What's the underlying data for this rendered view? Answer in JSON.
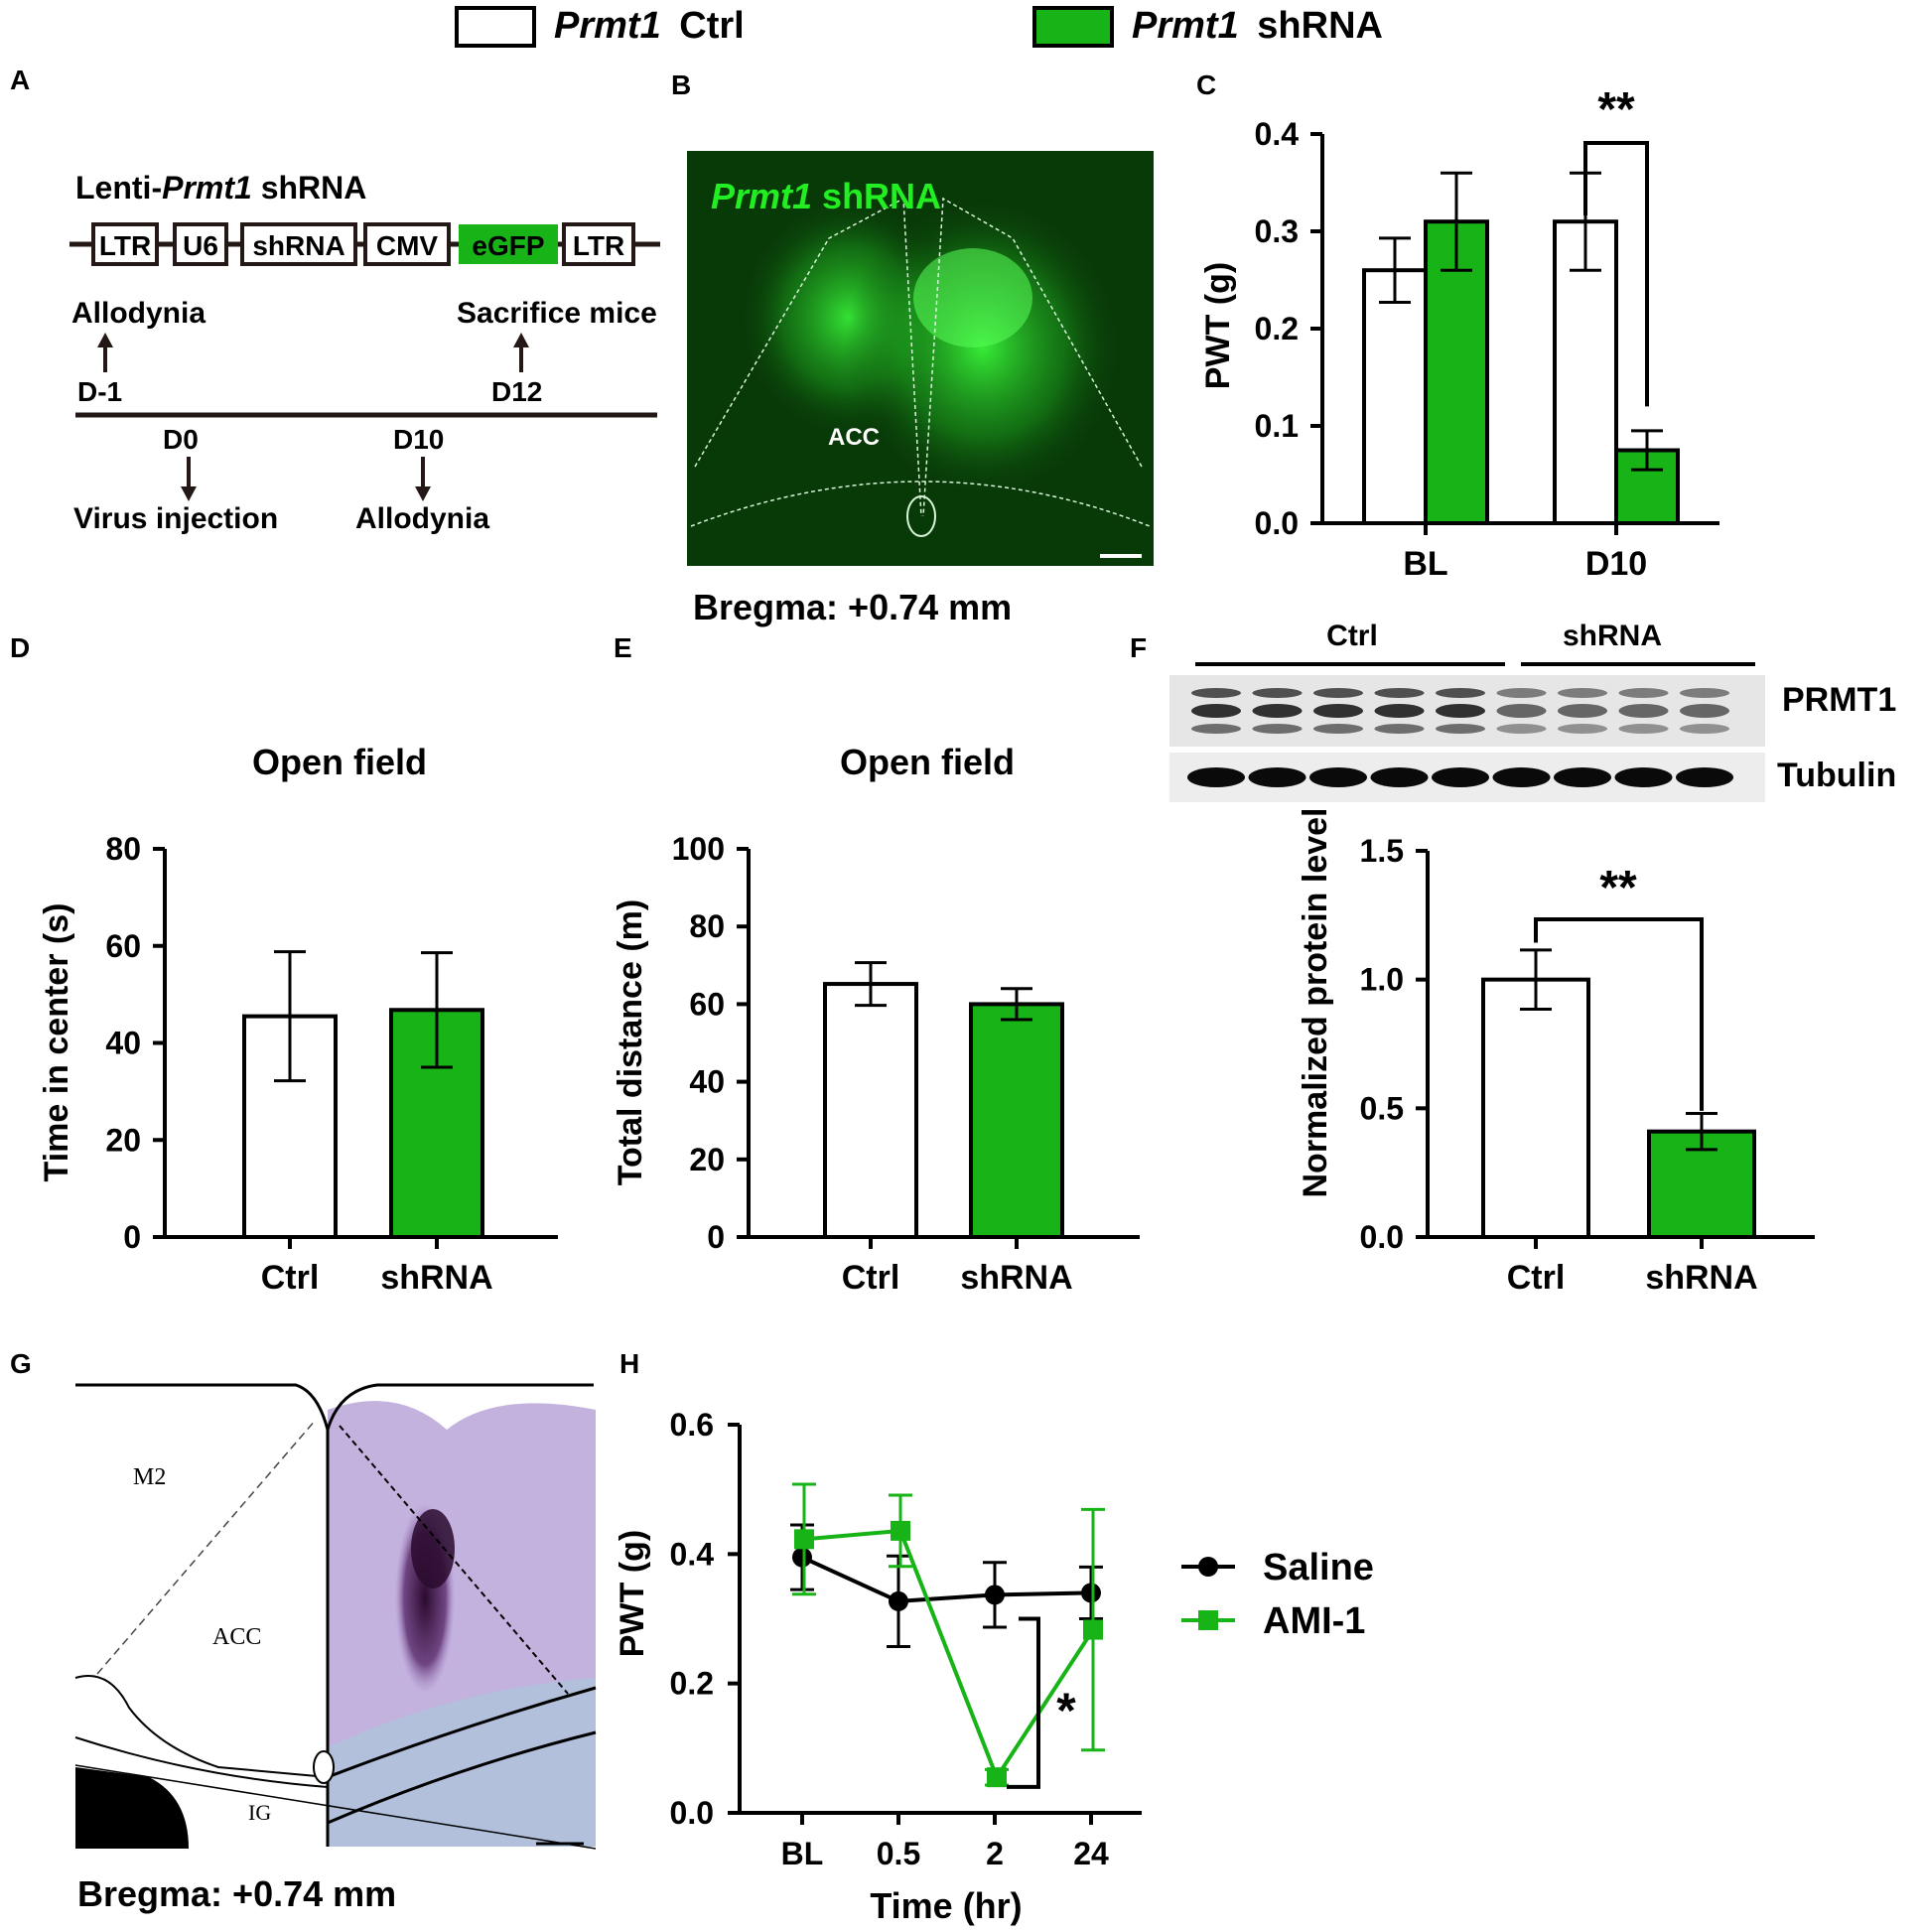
{
  "legend_top": {
    "ctrl": {
      "gene": "Prmt1",
      "label": "Ctrl",
      "color": "#ffffff"
    },
    "shrna": {
      "gene": "Prmt1",
      "label": "shRNA",
      "color": "#17b317"
    }
  },
  "panel_labels": {
    "a": "A",
    "b": "B",
    "c": "C",
    "d": "D",
    "e": "E",
    "f": "F",
    "g": "G",
    "h": "H"
  },
  "panel_a": {
    "construct_prefix": "Lenti-",
    "construct_gene": "Prmt1",
    "construct_suffix": " shRNA",
    "elements": [
      "LTR",
      "U6",
      "shRNA",
      "CMV",
      "eGFP",
      "LTR"
    ],
    "egfp_color": "#17b317",
    "events": [
      {
        "day": "D-1",
        "label": "Allodynia"
      },
      {
        "day": "D12",
        "label": "Sacrifice mice"
      },
      {
        "day": "D0",
        "label": "Virus injection"
      },
      {
        "day": "D10",
        "label": "Allodynia"
      }
    ]
  },
  "panel_b": {
    "overlay_gene": "Prmt1",
    "overlay_suffix": " shRNA",
    "region": "ACC",
    "caption": "Bregma: +0.74 mm"
  },
  "panel_g": {
    "regions": [
      "M2",
      "ACC",
      "IG"
    ],
    "caption": "Bregma: +0.74 mm"
  },
  "panel_f_blot": {
    "group_labels": [
      "Ctrl",
      "shRNA"
    ],
    "bands": [
      "PRMT1",
      "Tubulin"
    ],
    "lanes": {
      "ctrl": 5,
      "shrna": 4
    }
  },
  "chart_data": [
    {
      "panel": "C",
      "type": "bar",
      "categories": [
        "BL",
        "D10"
      ],
      "series": [
        {
          "name": "Prmt1 Ctrl",
          "values": [
            0.26,
            0.31
          ],
          "errors": [
            0.033,
            0.05
          ],
          "color": "#ffffff"
        },
        {
          "name": "Prmt1 shRNA",
          "values": [
            0.31,
            0.075
          ],
          "errors": [
            0.05,
            0.02
          ],
          "color": "#17b317"
        }
      ],
      "ylabel": "PWT (g)",
      "ylim": [
        0,
        0.4
      ],
      "yticks": [
        "0.0",
        "0.1",
        "0.2",
        "0.3",
        "0.4"
      ],
      "annotations": [
        {
          "text": "**",
          "between": "D10"
        }
      ]
    },
    {
      "panel": "D",
      "type": "bar",
      "title": "Open field",
      "categories": [
        "Ctrl",
        "shRNA"
      ],
      "values": [
        45.5,
        46.8
      ],
      "errors": [
        13.3,
        11.8
      ],
      "colors": [
        "#ffffff",
        "#17b317"
      ],
      "ylabel": "Time in center (s)",
      "ylim": [
        0,
        80
      ],
      "yticks": [
        "0",
        "20",
        "40",
        "60",
        "80"
      ]
    },
    {
      "panel": "E",
      "type": "bar",
      "title": "Open field",
      "categories": [
        "Ctrl",
        "shRNA"
      ],
      "values": [
        65.2,
        60.0
      ],
      "errors": [
        5.5,
        4.0
      ],
      "colors": [
        "#ffffff",
        "#17b317"
      ],
      "ylabel": "Total distance (m)",
      "ylim": [
        0,
        100
      ],
      "yticks": [
        "0",
        "20",
        "40",
        "60",
        "80",
        "100"
      ]
    },
    {
      "panel": "F",
      "type": "bar",
      "categories": [
        "Ctrl",
        "shRNA"
      ],
      "values": [
        1.0,
        0.41
      ],
      "errors": [
        0.115,
        0.07
      ],
      "colors": [
        "#ffffff",
        "#17b317"
      ],
      "ylabel": "Normalized protein level",
      "ylim": [
        0,
        1.5
      ],
      "yticks": [
        "0.0",
        "0.5",
        "1.0",
        "1.5"
      ],
      "annotations": [
        {
          "text": "**"
        }
      ]
    },
    {
      "panel": "H",
      "type": "line",
      "categories": [
        "BL",
        "0.5",
        "2",
        "24"
      ],
      "series": [
        {
          "name": "Saline",
          "values": [
            0.395,
            0.327,
            0.337,
            0.34
          ],
          "errors": [
            0.05,
            0.07,
            0.05,
            0.04
          ],
          "color": "#000000",
          "marker": "circle"
        },
        {
          "name": "AMI-1",
          "values": [
            0.423,
            0.436,
            0.055,
            0.283
          ],
          "errors": [
            0.085,
            0.055,
            0.012,
            0.186
          ],
          "color": "#17b317",
          "marker": "square"
        }
      ],
      "xlabel": "Time (hr)",
      "ylabel": "PWT (g)",
      "ylim": [
        0,
        0.6
      ],
      "yticks": [
        "0.0",
        "0.2",
        "0.4",
        "0.6"
      ],
      "annotations": [
        {
          "text": "*"
        }
      ]
    }
  ]
}
